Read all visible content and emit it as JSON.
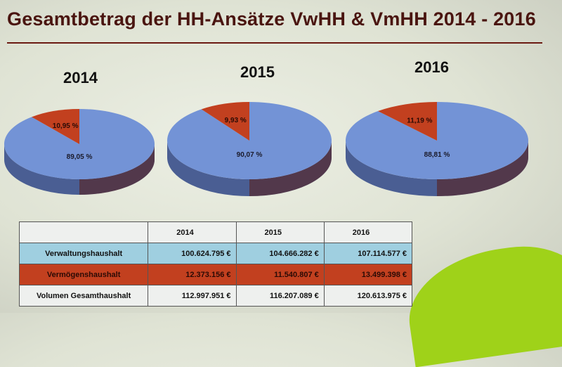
{
  "title": "Gesamtbetrag der HH-Ansätze VwHH & VmHH 2014 - 2016",
  "colors": {
    "blue": "#7393d6",
    "blue_side": "#4a5e93",
    "red": "#c2401f",
    "red_side": "#5a1a10"
  },
  "chart_data": {
    "type": "pie",
    "charts": [
      {
        "year": "2014",
        "slices": [
          {
            "label": "89,05 %",
            "value": 89.05
          },
          {
            "label": "10,95 %",
            "value": 10.95
          }
        ]
      },
      {
        "year": "2015",
        "slices": [
          {
            "label": "90,07 %",
            "value": 90.07
          },
          {
            "label": "9,93 %",
            "value": 9.93
          }
        ]
      },
      {
        "year": "2016",
        "slices": [
          {
            "label": "88,81 %",
            "value": 88.81
          },
          {
            "label": "11,19 %",
            "value": 11.19
          }
        ]
      }
    ],
    "slice_colors": [
      "#7393d6",
      "#c2401f"
    ]
  },
  "table": {
    "headers": [
      "",
      "2014",
      "2015",
      "2016"
    ],
    "rows": [
      {
        "label": "Verwaltungshaushalt",
        "values": [
          "100.624.795 €",
          "104.666.282 €",
          "107.114.577 €"
        ]
      },
      {
        "label": "Vermögenshaushalt",
        "values": [
          "12.373.156 €",
          "11.540.807 €",
          "13.499.398 €"
        ]
      },
      {
        "label": "Volumen Gesamthaushalt",
        "values": [
          "112.997.951 €",
          "116.207.089 €",
          "120.613.975 €"
        ]
      }
    ]
  }
}
